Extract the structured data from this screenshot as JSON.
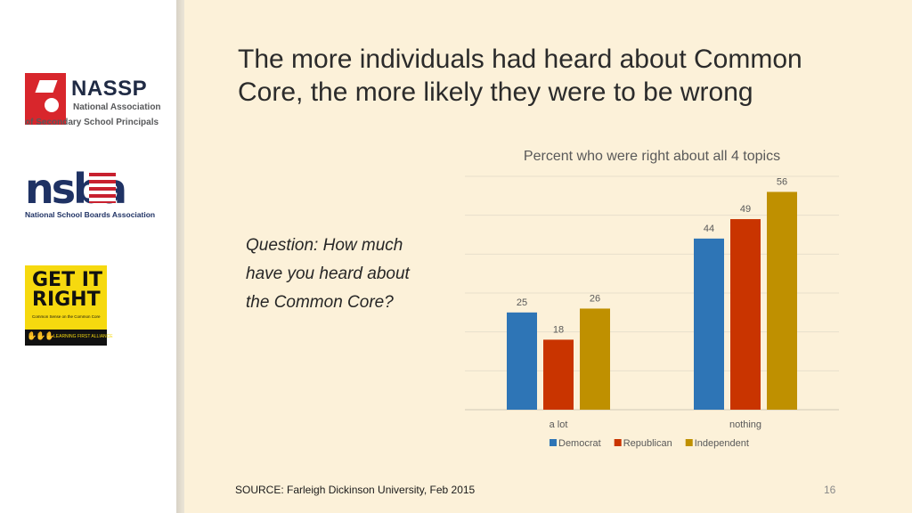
{
  "slide": {
    "title": "The more individuals had heard about Common Core, the more likely they were to be wrong",
    "question": "Question: How much have you heard about the Common Core?",
    "source": "SOURCE: Farleigh Dickinson University, Feb 2015",
    "page_number": "16"
  },
  "logos": {
    "nassp": {
      "name": "NASSP",
      "line1": "National Association",
      "line2": "of Secondary School Principals"
    },
    "nsba": {
      "name": "nsba",
      "tagline": "National School Boards Association"
    },
    "get_it_right": {
      "title": "GET IT RIGHT",
      "subtitle": "Common Sense on the Common Core",
      "footer": "LEARNING FIRST ALLIANCE"
    }
  },
  "chart_data": {
    "type": "bar",
    "title": "Percent who were right about all 4 topics",
    "categories": [
      "a lot",
      "nothing"
    ],
    "series": [
      {
        "name": "Democrat",
        "color": "#2e75b6",
        "values": [
          25,
          44
        ]
      },
      {
        "name": "Republican",
        "color": "#c93400",
        "values": [
          18,
          49
        ]
      },
      {
        "name": "Independent",
        "color": "#bf9000",
        "values": [
          26,
          56
        ]
      }
    ],
    "ylim": [
      0,
      60
    ],
    "grid": true,
    "legend": "bottom"
  }
}
